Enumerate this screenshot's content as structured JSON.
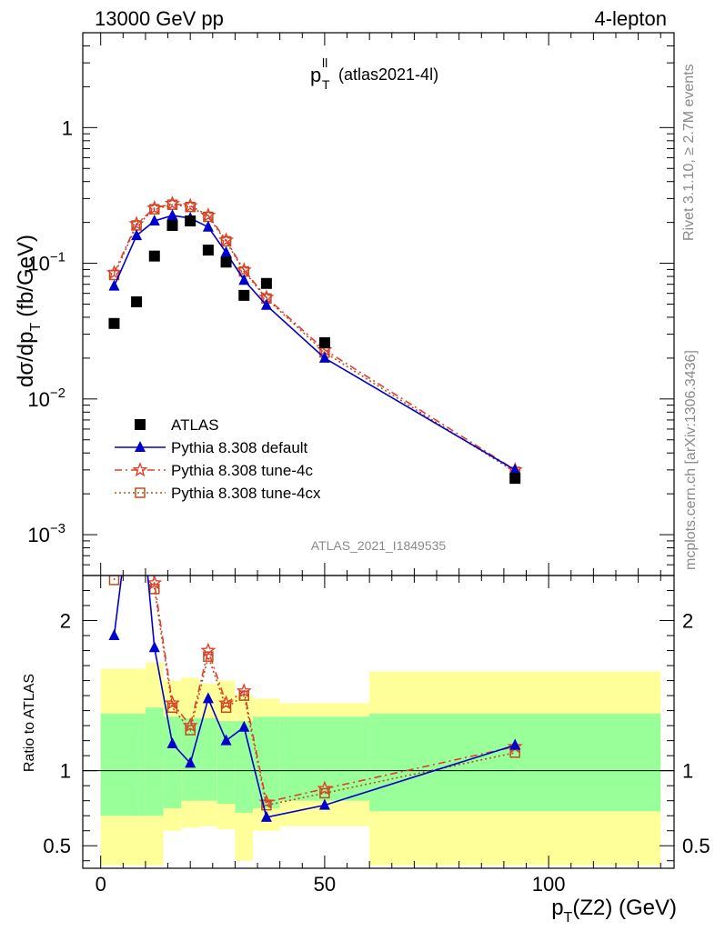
{
  "header": {
    "left": "13000 GeV pp",
    "right": "4-lepton"
  },
  "plot_title": {
    "main": "p",
    "sup": "ll",
    "sub": "T",
    "tag": "(atlas2021-4l)"
  },
  "axes": {
    "ylabel_main": "dσ/dp",
    "ylabel_sub": "T",
    "ylabel_unit": "(fb/GeV)",
    "xlabel_main": "p",
    "xlabel_sub": "T",
    "xlabel_rest": "(Z2) (GeV)",
    "ratio_ylabel": "Ratio to ATLAS"
  },
  "watermark": "ATLAS_2021_I1849535",
  "side_text": {
    "rivet": "Rivet 3.1.10, ≥ 2.7M events",
    "mcplots": "mcplots.cern.ch [arXiv:1306.3436]"
  },
  "colors": {
    "data": "#000000",
    "default": "#0000cc",
    "tune4c": "#e0402a",
    "tune4cx": "#b8501a",
    "band_inner": "#99ff99",
    "band_outer": "#ffff99"
  },
  "legend": [
    {
      "label": "ATLAS",
      "color": "#000000",
      "marker": "square",
      "line": "none"
    },
    {
      "label": "Pythia 8.308 default",
      "color": "#0000cc",
      "marker": "triangle",
      "line": "solid"
    },
    {
      "label": "Pythia 8.308 tune-4c",
      "color": "#e0402a",
      "marker": "star",
      "line": "dashdot"
    },
    {
      "label": "Pythia 8.308 tune-4cx",
      "color": "#b8501a",
      "marker": "opensquare",
      "line": "dotted"
    }
  ],
  "chart_data": {
    "type": "scatter",
    "x": [
      3,
      8,
      12,
      16,
      20,
      24,
      28,
      32,
      37,
      50,
      92.5
    ],
    "xlim": [
      -4,
      128
    ],
    "ylim_main": [
      0.0005,
      5
    ],
    "yscale_main": "log",
    "ylim_ratio": [
      0.35,
      2.3
    ],
    "x_ticks": [
      0,
      50,
      100
    ],
    "y_ticks_main": [
      {
        "v": 0.001,
        "base": "10",
        "exp": "−3"
      },
      {
        "v": 0.01,
        "base": "10",
        "exp": "−2"
      },
      {
        "v": 0.1,
        "base": "10",
        "exp": "−1"
      },
      {
        "v": 1,
        "base": "1",
        "exp": ""
      }
    ],
    "y_ticks_ratio": [
      {
        "v": 0.5,
        "label": "0.5"
      },
      {
        "v": 1,
        "label": "1"
      },
      {
        "v": 2,
        "label": "2"
      }
    ],
    "series": [
      {
        "name": "ATLAS",
        "values": [
          0.036,
          0.052,
          0.113,
          0.19,
          0.205,
          0.125,
          0.102,
          0.058,
          0.071,
          0.026,
          0.0026
        ]
      },
      {
        "name": "Pythia 8.308 default",
        "values": [
          0.068,
          0.16,
          0.205,
          0.225,
          0.215,
          0.185,
          0.12,
          0.075,
          0.049,
          0.02,
          0.003
        ]
      },
      {
        "name": "Pythia 8.308 tune-4c",
        "values": [
          0.085,
          0.195,
          0.255,
          0.275,
          0.265,
          0.225,
          0.148,
          0.089,
          0.056,
          0.023,
          0.003
        ]
      },
      {
        "name": "Pythia 8.308 tune-4cx",
        "values": [
          0.082,
          0.19,
          0.25,
          0.27,
          0.26,
          0.22,
          0.145,
          0.087,
          0.055,
          0.022,
          0.0029
        ]
      }
    ],
    "ratio_series": [
      {
        "name": "Pythia 8.308 default",
        "values": [
          1.9,
          3.1,
          1.82,
          1.18,
          1.05,
          1.48,
          1.2,
          1.29,
          0.69,
          0.77,
          1.17
        ]
      },
      {
        "name": "Pythia 8.308 tune-4c",
        "values": [
          2.36,
          3.7,
          2.25,
          1.45,
          1.3,
          1.8,
          1.45,
          1.53,
          0.79,
          0.88,
          1.16
        ]
      },
      {
        "name": "Pythia 8.308 tune-4cx",
        "values": [
          2.27,
          3.6,
          2.21,
          1.42,
          1.27,
          1.76,
          1.42,
          1.5,
          0.77,
          0.85,
          1.12
        ]
      }
    ],
    "uncertainty_bands": {
      "edges": [
        0,
        10,
        14,
        18,
        22,
        26,
        30,
        34,
        40,
        60,
        125
      ],
      "inner_low": [
        0.7,
        0.7,
        0.75,
        0.8,
        0.8,
        0.78,
        0.72,
        0.75,
        0.8,
        0.73
      ],
      "inner_high": [
        1.38,
        1.42,
        1.36,
        1.35,
        1.35,
        1.33,
        1.33,
        1.36,
        1.36,
        1.38
      ],
      "outer_low": [
        0.37,
        0.37,
        0.6,
        0.62,
        0.63,
        0.61,
        0.4,
        0.6,
        0.63,
        0.37
      ],
      "outer_high": [
        1.68,
        1.72,
        1.6,
        1.62,
        1.58,
        1.6,
        1.5,
        1.48,
        1.45,
        1.66
      ]
    }
  }
}
